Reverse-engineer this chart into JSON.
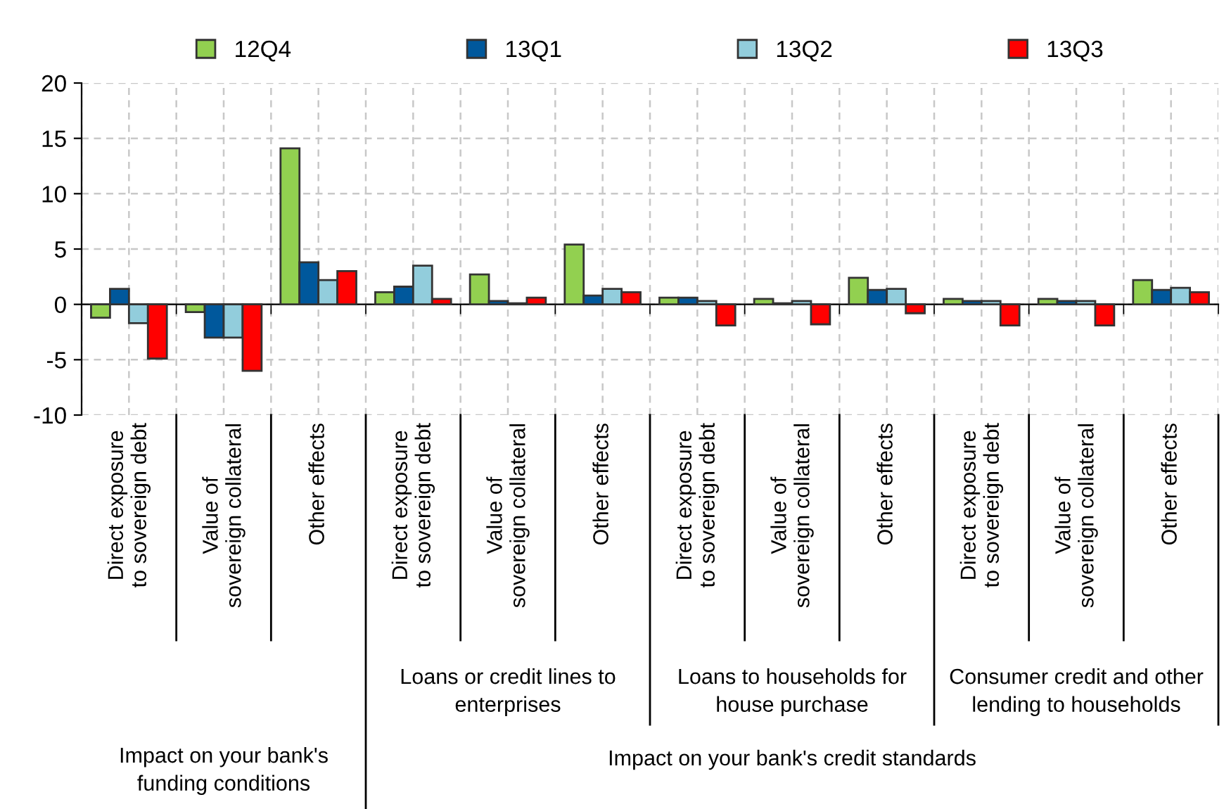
{
  "chart_data": {
    "type": "bar",
    "categories": [
      "Direct exposure\nto sovereign debt",
      "Value of\nsovereign collateral",
      "Other effects",
      "Direct exposure\nto sovereign debt",
      "Value of\nsovereign collateral",
      "Other effects",
      "Direct exposure\nto sovereign debt",
      "Value of\nsovereign collateral",
      "Other effects",
      "Direct exposure\nto sovereign debt",
      "Value of\nsovereign collateral",
      "Other effects"
    ],
    "series": [
      {
        "name": "12Q4",
        "color": "#92d050",
        "values": [
          -1.2,
          -0.7,
          14.1,
          1.1,
          2.7,
          5.4,
          0.6,
          0.5,
          2.4,
          0.5,
          0.5,
          2.2
        ]
      },
      {
        "name": "13Q1",
        "color": "#00589c",
        "values": [
          1.4,
          -3.0,
          3.8,
          1.6,
          0.3,
          0.8,
          0.6,
          0.1,
          1.3,
          0.3,
          0.3,
          1.3
        ]
      },
      {
        "name": "13Q2",
        "color": "#92cddc",
        "values": [
          -1.7,
          -3.0,
          2.2,
          3.5,
          0.1,
          1.4,
          0.3,
          0.3,
          1.4,
          0.3,
          0.3,
          1.5
        ]
      },
      {
        "name": "13Q3",
        "color": "#ff0000",
        "values": [
          -4.9,
          -6.0,
          3.0,
          0.5,
          0.6,
          1.1,
          -1.9,
          -1.8,
          -0.8,
          -1.9,
          -1.9,
          1.1
        ]
      }
    ],
    "ylim": [
      -10,
      20
    ],
    "yticks": [
      -10,
      -5,
      0,
      5,
      10,
      15,
      20
    ],
    "grid": true,
    "legend": "top",
    "annotations": [
      "Loans or credit lines to\nenterprises",
      "Loans to households for\nhouse purchase",
      "Consumer credit and other\nlending to households",
      "Impact on your bank's\nfunding conditions",
      "Impact on your bank's credit standards"
    ]
  }
}
